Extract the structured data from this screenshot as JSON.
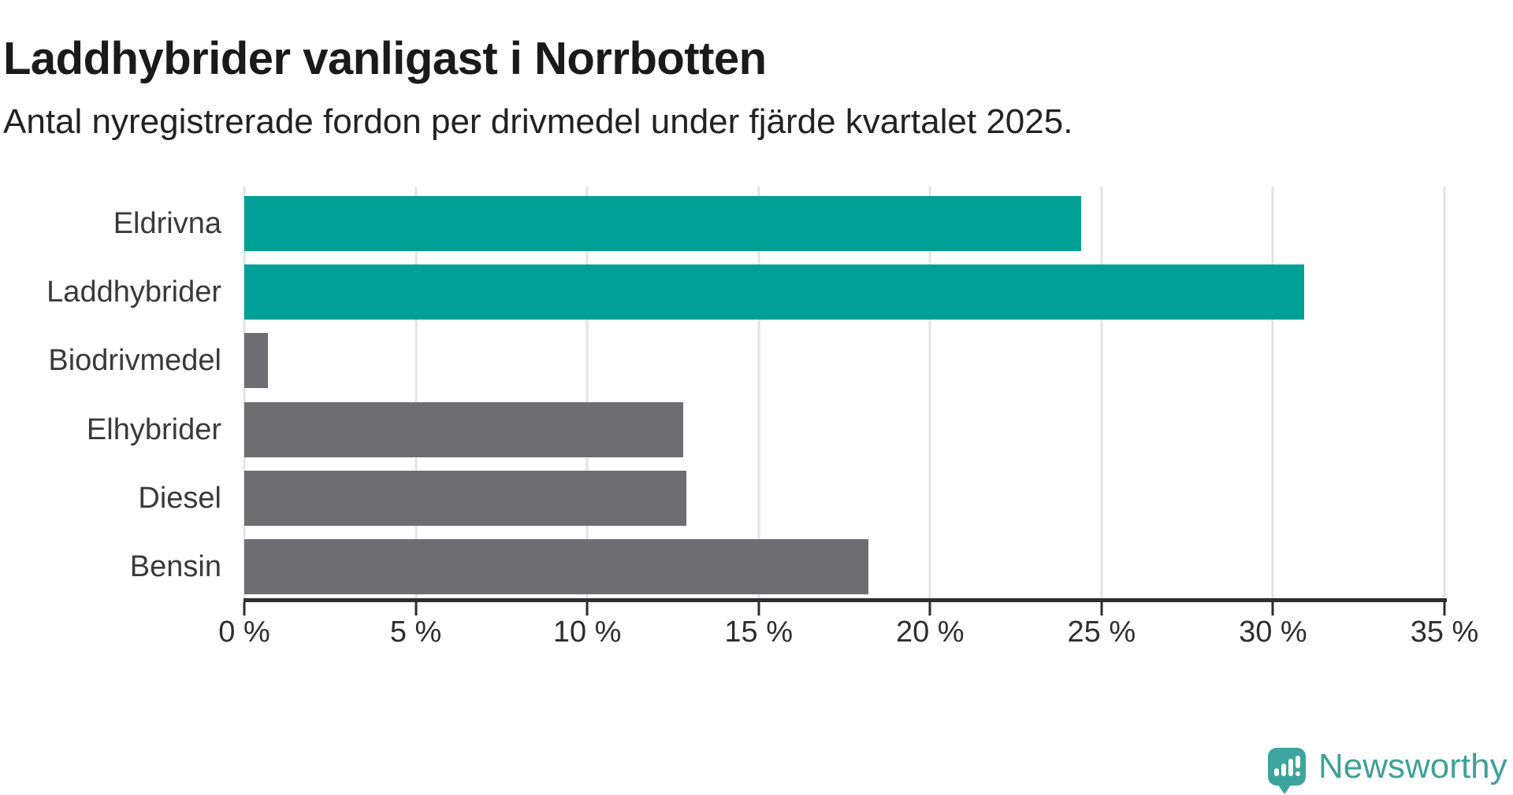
{
  "header": {
    "title": "Laddhybrider vanligast i Norrbotten",
    "subtitle": "Antal nyregistrerade fordon per drivmedel under fjärde kvartalet 2025."
  },
  "chart_data": {
    "type": "bar",
    "orientation": "horizontal",
    "title": "Laddhybrider vanligast i Norrbotten",
    "subtitle": "Antal nyregistrerade fordon per drivmedel under fjärde kvartalet 2025.",
    "categories": [
      "Eldrivna",
      "Laddhybrider",
      "Biodrivmedel",
      "Elhybrider",
      "Diesel",
      "Bensin"
    ],
    "values": [
      24.4,
      30.9,
      0.7,
      12.8,
      12.9,
      18.2
    ],
    "unit": "%",
    "xlabel": "",
    "ylabel": "",
    "xlim": [
      0,
      35
    ],
    "x_tick_step": 5,
    "x_tick_labels": [
      "0 %",
      "5 %",
      "10 %",
      "15 %",
      "20 %",
      "25 %",
      "30 %",
      "35 %"
    ],
    "grid": true,
    "legend": false,
    "bar_colors": [
      "#00a096",
      "#00a096",
      "#6d6d72",
      "#6d6d72",
      "#6d6d72",
      "#6d6d72"
    ],
    "highlight_color": "#00a096",
    "default_color": "#6d6d72",
    "axis_color": "#2e2e2e",
    "gridline_color": "#e3e3e3"
  },
  "footer": {
    "brand": "Newsworthy",
    "brand_color": "#40a099",
    "logo_icon": "speech-bubble-bar-chart-icon"
  }
}
